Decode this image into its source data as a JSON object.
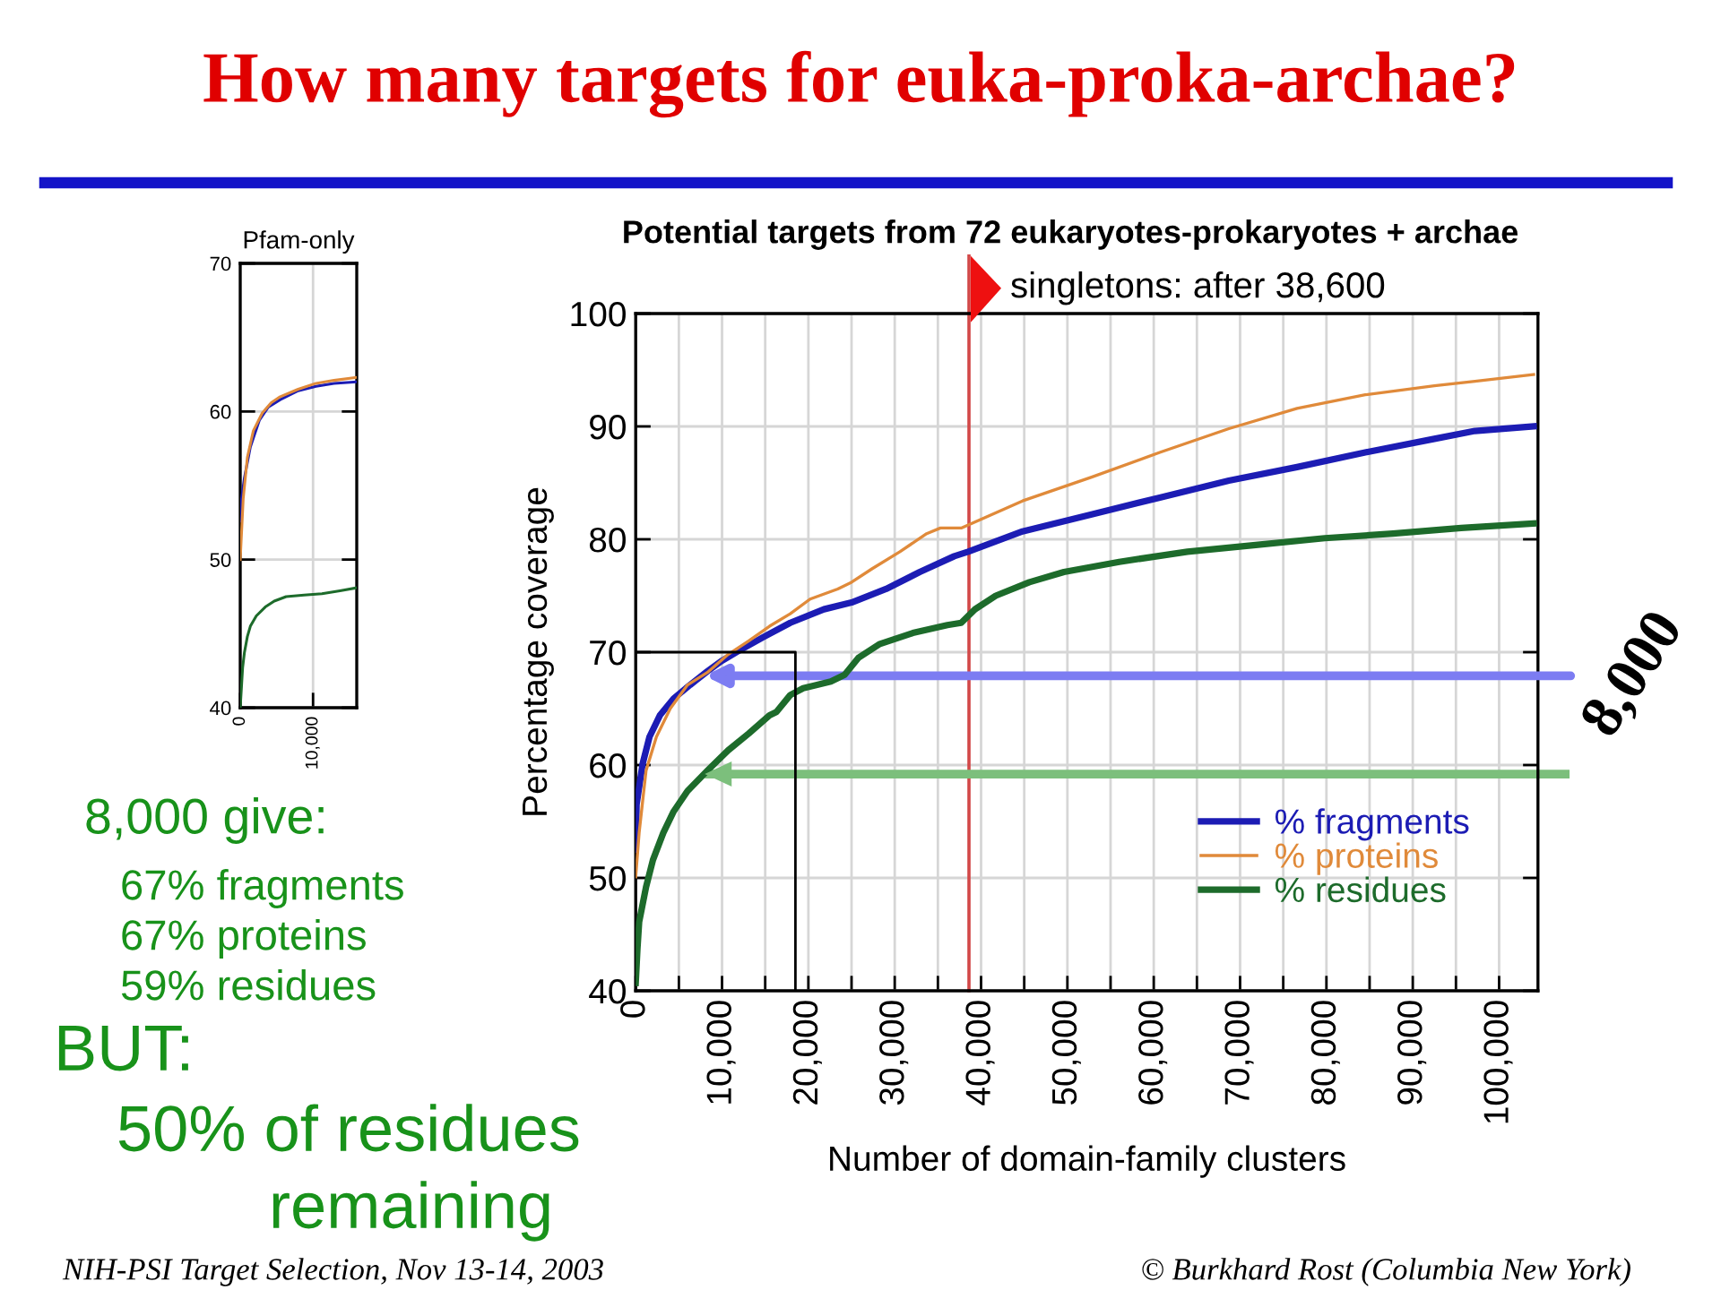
{
  "chart_data": [
    {
      "type": "line",
      "title": "How many targets for euka-proka-archae?",
      "subtitle": "Potential targets from 72 eukaryotes-prokaryotes + archae",
      "xlabel": "Number of domain-family clusters",
      "ylabel": "Percentage coverage",
      "xlim": [
        0,
        104500
      ],
      "xticks": [
        0,
        {
          "value": 5000,
          "label": null
        },
        {
          "value": 10000,
          "label": "10,000"
        },
        {
          "value": 15000,
          "label": null
        },
        {
          "value": 20000,
          "label": "20,000"
        },
        {
          "value": 25000,
          "label": null
        },
        {
          "value": 30000,
          "label": "30,000"
        },
        {
          "value": 35000,
          "label": null
        },
        {
          "value": 40000,
          "label": "40,000"
        },
        {
          "value": 45000,
          "label": null
        },
        {
          "value": 50000,
          "label": "50,000"
        },
        {
          "value": 55000,
          "label": null
        },
        {
          "value": 60000,
          "label": "60,000"
        },
        {
          "value": 65000,
          "label": null
        },
        {
          "value": 70000,
          "label": "70,000"
        },
        {
          "value": 75000,
          "label": null
        },
        {
          "value": 80000,
          "label": "80,000"
        },
        {
          "value": 85000,
          "label": null
        },
        {
          "value": 90000,
          "label": "90,000"
        },
        {
          "value": 95000,
          "label": null
        },
        {
          "value": 100000,
          "label": "100,000"
        }
      ],
      "ylim": [
        40,
        100
      ],
      "yticks": [
        40,
        50,
        60,
        70,
        80,
        90,
        100
      ],
      "grid": true,
      "legend": "bottom right",
      "series": [
        {
          "name": "% fragments",
          "color": "#1c1cb4",
          "x": [
            0,
            100,
            800,
            1600,
            2800,
            4400,
            6300,
            8300,
            9900,
            11900,
            14700,
            17900,
            21800,
            25000,
            29000,
            32900,
            36900,
            38500,
            44800,
            52800,
            60700,
            68700,
            76600,
            84500,
            92500,
            97200,
            104000
          ],
          "values": [
            52.5,
            56.5,
            60.1,
            62.5,
            64.4,
            65.9,
            67.1,
            68.3,
            69.2,
            70.1,
            71.3,
            72.6,
            73.8,
            74.4,
            75.6,
            77.1,
            78.5,
            78.9,
            80.7,
            82.2,
            83.7,
            85.2,
            86.4,
            87.7,
            88.9,
            89.6,
            90.0
          ]
        },
        {
          "name": "% proteins",
          "color": "#e08a3a",
          "x": [
            0,
            400,
            1200,
            2400,
            4000,
            6000,
            8300,
            10700,
            13100,
            15500,
            17900,
            20200,
            23400,
            25000,
            27400,
            30600,
            33700,
            35300,
            37700,
            44800,
            52800,
            60700,
            68700,
            76600,
            84500,
            92500,
            97200,
            104000
          ],
          "values": [
            50.1,
            54.0,
            59.5,
            62.5,
            65.0,
            67.1,
            68.2,
            69.8,
            71.0,
            72.3,
            73.4,
            74.7,
            75.6,
            76.2,
            77.4,
            78.9,
            80.5,
            81.0,
            81.0,
            83.4,
            85.5,
            87.7,
            89.8,
            91.6,
            92.8,
            93.6,
            94.0,
            94.6
          ]
        },
        {
          "name": "% residues",
          "color": "#1d6b2b",
          "x": [
            0,
            200,
            400,
            1200,
            2000,
            3200,
            4400,
            6000,
            8300,
            10700,
            13100,
            15500,
            16300,
            17900,
            19400,
            22600,
            24200,
            25800,
            28200,
            32100,
            36100,
            37700,
            39300,
            41700,
            45600,
            49600,
            56000,
            63900,
            71800,
            79800,
            87700,
            95600,
            104000
          ],
          "values": [
            40.7,
            43.7,
            46.1,
            49.2,
            51.6,
            54.0,
            55.9,
            57.7,
            59.5,
            61.3,
            62.8,
            64.4,
            64.7,
            66.2,
            66.8,
            67.4,
            68.0,
            69.5,
            70.7,
            71.7,
            72.4,
            72.6,
            73.8,
            75.0,
            76.2,
            77.1,
            78.0,
            78.9,
            79.5,
            80.1,
            80.5,
            81.0,
            81.4
          ]
        },
        {
          "color": "#000000",
          "x": [
            0,
            18500,
            18500
          ],
          "values": [
            70,
            70,
            40
          ]
        }
      ],
      "ref_lines": [
        {
          "axis": "x",
          "value": 38600,
          "label": "singletons: after 38,600",
          "color": "#d24848"
        },
        {
          "axis": "y",
          "value": 59.2,
          "color": "#7cbf7c"
        }
      ],
      "annotations": [
        "8,000 give:",
        "67% fragments",
        "67% proteins",
        "59% residues",
        "BUT:",
        "50% of residues",
        "remaining",
        {
          "text": "8,000",
          "x": 8000,
          "y": 67.9
        },
        "NIH-PSI Target Selection, Nov 13-14, 2003",
        "© Burkhard Rost (Columbia New York)"
      ]
    },
    {
      "type": "line",
      "title": "Pfam-only",
      "xlim": [
        0,
        16000
      ],
      "xticks": [
        0,
        {
          "value": 10000,
          "label": "10,000"
        }
      ],
      "ylim": [
        40,
        70
      ],
      "yticks": [
        40,
        50,
        60,
        70
      ],
      "grid": true,
      "series": [
        {
          "color": "#1c1cb4",
          "x": [
            0,
            160,
            570,
            1390,
            2620,
            3850,
            5490,
            7950,
            10400,
            12870,
            16000
          ],
          "values": [
            52.6,
            54.0,
            55.5,
            57.6,
            59.4,
            60.3,
            60.8,
            61.4,
            61.7,
            61.9,
            62.0
          ]
        },
        {
          "color": "#e08a3a",
          "x": [
            0,
            410,
            980,
            1800,
            3030,
            4260,
            5490,
            7950,
            10400,
            12870,
            16000
          ],
          "values": [
            50.0,
            54.1,
            56.9,
            58.7,
            59.9,
            60.6,
            61.0,
            61.5,
            61.9,
            62.1,
            62.3
          ]
        },
        {
          "color": "#1d6b2b",
          "x": [
            0,
            330,
            570,
            980,
            1390,
            2210,
            3440,
            4670,
            6310,
            8770,
            11230,
            13690,
            16000
          ],
          "values": [
            40.0,
            42.7,
            43.7,
            44.8,
            45.5,
            46.2,
            46.8,
            47.2,
            47.5,
            47.6,
            47.7,
            47.9,
            48.1
          ]
        }
      ]
    }
  ]
}
